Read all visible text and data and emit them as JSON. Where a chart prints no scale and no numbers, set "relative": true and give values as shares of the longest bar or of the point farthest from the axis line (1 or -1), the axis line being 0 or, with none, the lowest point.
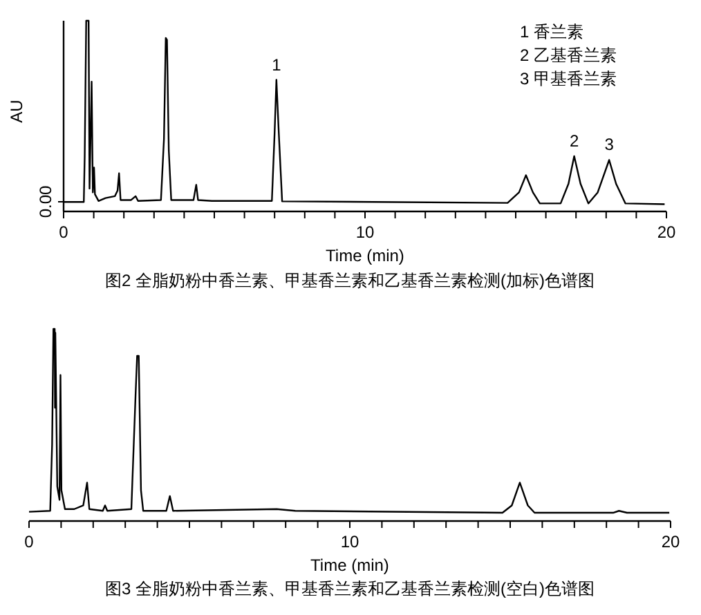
{
  "chart_data": [
    {
      "type": "line",
      "relative": true,
      "title": "图2 全脂奶粉中香兰素、甲基香兰素和乙基香兰素检测(加标)色谱图",
      "xlabel": "Time (min)",
      "ylabel": "AU",
      "x": [
        0,
        0.67,
        0.7,
        0.75,
        0.83,
        0.86,
        0.93,
        0.97,
        1.01,
        1.04,
        1.16,
        1.39,
        1.7,
        1.79,
        1.84,
        1.89,
        2.24,
        2.39,
        2.47,
        3.23,
        3.33,
        3.39,
        3.43,
        3.49,
        3.57,
        4.31,
        4.4,
        4.46,
        4.92,
        6.91,
        7.0,
        7.06,
        7.14,
        7.25,
        14.73,
        15.11,
        15.34,
        15.57,
        15.8,
        16.49,
        16.75,
        16.94,
        17.15,
        17.41,
        17.72,
        18.1,
        18.33,
        18.64,
        19.94
      ],
      "series": [
        {
          "color": "#000000",
          "values": [
            0.05,
            0.05,
            0.29,
            1,
            1,
            0.12,
            0.68,
            0.1,
            0.23,
            0.09,
            0.055,
            0.07,
            0.08,
            0.11,
            0.2,
            0.06,
            0.06,
            0.08,
            0.055,
            0.06,
            0.38,
            0.91,
            0.9,
            0.32,
            0.06,
            0.06,
            0.14,
            0.06,
            0.055,
            0.055,
            0.41,
            0.69,
            0.41,
            0.053,
            0.045,
            0.1,
            0.19,
            0.1,
            0.042,
            0.042,
            0.145,
            0.29,
            0.145,
            0.042,
            0.1,
            0.27,
            0.145,
            0.042,
            0.038
          ]
        }
      ],
      "xlim": [
        0,
        20
      ],
      "xticks": [
        0,
        {
          "value": 1,
          "label": null
        },
        {
          "value": 2,
          "label": null
        },
        {
          "value": 3,
          "label": null
        },
        {
          "value": 4,
          "label": null
        },
        {
          "value": 5,
          "label": null
        },
        {
          "value": 6,
          "label": null
        },
        {
          "value": 7,
          "label": null
        },
        {
          "value": 8,
          "label": null
        },
        {
          "value": 9,
          "label": null
        },
        10,
        {
          "value": 11,
          "label": null
        },
        {
          "value": 12,
          "label": null
        },
        {
          "value": 13,
          "label": null
        },
        {
          "value": 14,
          "label": null
        },
        {
          "value": 15,
          "label": null
        },
        {
          "value": 16,
          "label": null
        },
        {
          "value": 17,
          "label": null
        },
        {
          "value": 18,
          "label": null
        },
        {
          "value": 19,
          "label": null
        },
        20
      ],
      "annotations": [
        "0.00",
        {
          "text": "1",
          "x": 7.06,
          "y": 0.69
        },
        {
          "text": "2",
          "x": 16.94,
          "y": 0.29
        },
        {
          "text": "3",
          "x": 18.1,
          "y": 0.27
        },
        "1 香兰素",
        "2 乙基香兰素",
        "3 甲基香兰素"
      ]
    },
    {
      "type": "line",
      "relative": true,
      "title": "图3 全脂奶粉中香兰素、甲基香兰素和乙基香兰素检测(空白)色谱图",
      "xlabel": "Time (min)",
      "tick_labels": "x",
      "x": [
        0,
        0.66,
        0.72,
        0.76,
        0.8,
        0.81,
        0.82,
        0.88,
        0.95,
        0.98,
        1.01,
        1.12,
        1.41,
        1.69,
        1.81,
        1.88,
        2.3,
        2.37,
        2.44,
        3.19,
        3.32,
        3.37,
        3.42,
        3.49,
        3.56,
        4.28,
        4.39,
        4.49,
        7.72,
        8.3,
        14.76,
        15.05,
        15.3,
        15.55,
        15.76,
        18.21,
        18.39,
        18.64,
        19.96
      ],
      "series": [
        {
          "color": "#000000",
          "values": [
            0.048,
            0.053,
            0.4,
            1,
            1,
            0.59,
            0.98,
            0.18,
            0.11,
            0.76,
            0.16,
            0.062,
            0.062,
            0.081,
            0.2,
            0.062,
            0.053,
            0.081,
            0.053,
            0.062,
            0.65,
            0.86,
            0.86,
            0.16,
            0.053,
            0.053,
            0.13,
            0.053,
            0.062,
            0.053,
            0.043,
            0.081,
            0.2,
            0.081,
            0.043,
            0.043,
            0.053,
            0.043,
            0.043
          ]
        }
      ],
      "xlim": [
        0,
        20
      ],
      "xticks": [
        0,
        {
          "value": 1,
          "label": null
        },
        {
          "value": 2,
          "label": null
        },
        {
          "value": 3,
          "label": null
        },
        {
          "value": 4,
          "label": null
        },
        {
          "value": 5,
          "label": null
        },
        {
          "value": 6,
          "label": null
        },
        {
          "value": 7,
          "label": null
        },
        {
          "value": 8,
          "label": null
        },
        {
          "value": 9,
          "label": null
        },
        10,
        {
          "value": 11,
          "label": null
        },
        {
          "value": 12,
          "label": null
        },
        {
          "value": 13,
          "label": null
        },
        {
          "value": 14,
          "label": null
        },
        {
          "value": 15,
          "label": null
        },
        {
          "value": 16,
          "label": null
        },
        {
          "value": 17,
          "label": null
        },
        {
          "value": 18,
          "label": null
        },
        {
          "value": 19,
          "label": null
        },
        20
      ]
    }
  ]
}
